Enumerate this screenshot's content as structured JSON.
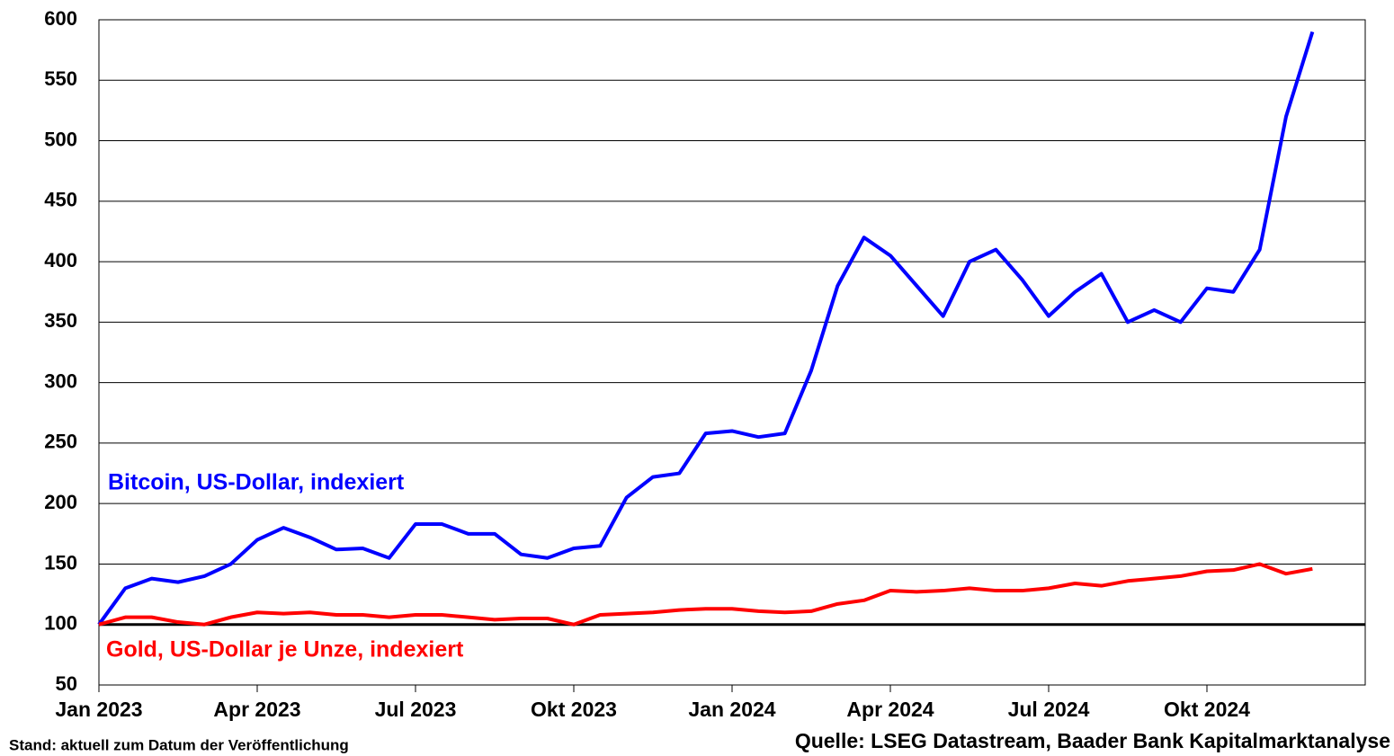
{
  "chart_data": {
    "type": "line",
    "categories": [
      "Jan 2023",
      null,
      null,
      null,
      null,
      null,
      "Apr 2023",
      null,
      null,
      null,
      null,
      null,
      "Jul 2023",
      null,
      null,
      null,
      null,
      null,
      "Okt 2023",
      null,
      null,
      null,
      null,
      null,
      "Jan 2024",
      null,
      null,
      null,
      null,
      null,
      "Apr 2024",
      null,
      null,
      null,
      null,
      null,
      "Jul 2024",
      null,
      null,
      null,
      null,
      null,
      "Okt 2024",
      null,
      null,
      null,
      null
    ],
    "series": [
      {
        "name": "Bitcoin, US-Dollar, indexiert",
        "color": "#0000ff",
        "values": [
          100,
          130,
          138,
          135,
          140,
          150,
          170,
          180,
          172,
          162,
          163,
          155,
          183,
          183,
          175,
          175,
          158,
          155,
          163,
          165,
          205,
          222,
          225,
          258,
          260,
          255,
          258,
          310,
          380,
          420,
          405,
          380,
          355,
          400,
          410,
          385,
          355,
          375,
          390,
          350,
          360,
          350,
          378,
          375,
          410,
          520,
          590
        ]
      },
      {
        "name": "Gold, US-Dollar je Unze, indexiert",
        "color": "#ff0000",
        "values": [
          100,
          106,
          106,
          102,
          100,
          106,
          110,
          109,
          110,
          108,
          108,
          106,
          108,
          108,
          106,
          104,
          105,
          105,
          100,
          108,
          109,
          110,
          112,
          113,
          113,
          111,
          110,
          111,
          117,
          120,
          128,
          127,
          128,
          130,
          128,
          128,
          130,
          134,
          132,
          136,
          138,
          140,
          144,
          145,
          150,
          142,
          146
        ]
      }
    ],
    "ylim": [
      50,
      600
    ],
    "yticks": [
      50,
      100,
      150,
      200,
      250,
      300,
      350,
      400,
      450,
      500,
      550,
      600
    ],
    "reference_line": 100,
    "grid": true,
    "footnote": "Stand: aktuell zum Datum der Veröffentlichung",
    "source": "Quelle: LSEG Datastream, Baader Bank Kapitalmarktanalyse"
  }
}
